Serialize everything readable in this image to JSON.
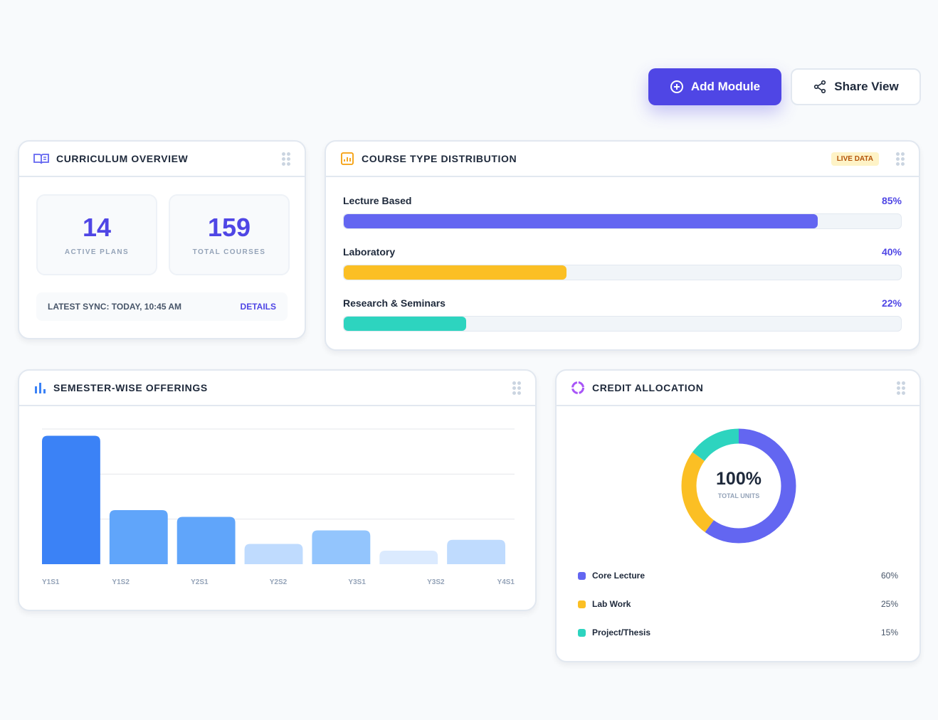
{
  "toolbar": {
    "add_label": "Add Module",
    "share_label": "Share View"
  },
  "overview": {
    "title": "CURRICULUM OVERVIEW",
    "stats": [
      {
        "value": "14",
        "label": "ACTIVE PLANS"
      },
      {
        "value": "159",
        "label": "TOTAL COURSES"
      }
    ],
    "sync": "LATEST SYNC: TODAY, 10:45 AM",
    "details": "DETAILS"
  },
  "distribution": {
    "title": "COURSE TYPE DISTRIBUTION",
    "badge": "LIVE DATA",
    "items": [
      {
        "label": "Lecture Based",
        "pct_text": "85%",
        "value": 85,
        "color": "#6366f1"
      },
      {
        "label": "Laboratory",
        "pct_text": "40%",
        "value": 40,
        "color": "#fbbf24"
      },
      {
        "label": "Research & Seminars",
        "pct_text": "22%",
        "value": 22,
        "color": "#2dd4bf"
      }
    ]
  },
  "semester": {
    "title": "SEMESTER-WISE OFFERINGS"
  },
  "credit": {
    "title": "CREDIT ALLOCATION",
    "center_value": "100%",
    "center_label": "TOTAL UNITS"
  },
  "chart_data": [
    {
      "type": "bar",
      "title": "SEMESTER-WISE OFFERINGS",
      "categories": [
        "Y1S1",
        "Y1S2",
        "Y2S1",
        "Y2S2",
        "Y3S1",
        "Y3S2",
        "Y4S1"
      ],
      "values": [
        95,
        40,
        35,
        15,
        25,
        10,
        18
      ],
      "colors": [
        "#3b82f6",
        "#60a5fa",
        "#60a5fa",
        "#bfdbfe",
        "#93c5fd",
        "#dbeafe",
        "#bfdbfe"
      ],
      "ylim": [
        0,
        100
      ],
      "grid": true
    },
    {
      "type": "pie",
      "title": "CREDIT ALLOCATION",
      "categories": [
        "Core Lecture",
        "Lab Work",
        "Project/Thesis"
      ],
      "values": [
        60,
        25,
        15
      ],
      "labels": [
        "60%",
        "25%",
        "15%"
      ],
      "colors": [
        "#6366f1",
        "#fbbf24",
        "#2dd4bf"
      ]
    }
  ]
}
